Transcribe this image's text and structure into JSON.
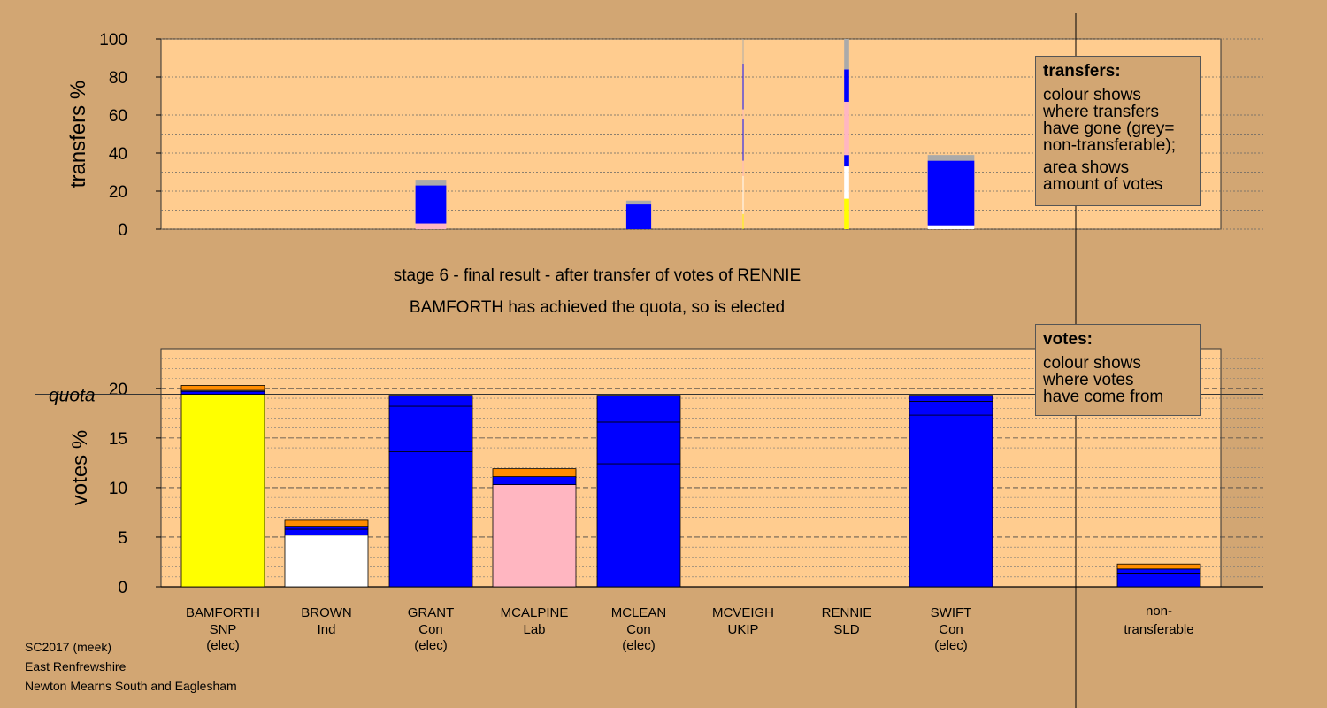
{
  "colors": {
    "background": "#d2a673",
    "plot_background": "#ffcc8f",
    "SNP": "#ffff00",
    "Ind": "#ffffff",
    "Con": "#0000ff",
    "Lab": "#ffb6c1",
    "UKIP": "#800080",
    "SLD": "#ff8c00",
    "non_transferable": "#aaaaaa"
  },
  "title": {
    "line1": "stage 6 - final result - after transfer of votes of RENNIE",
    "line2": "BAMFORTH has achieved the quota, so is elected"
  },
  "legend_transfers": {
    "title": "transfers:",
    "lines": [
      "colour shows",
      "where transfers",
      "have gone (grey=",
      "non-transferable);"
    ],
    "lines2": [
      "area shows",
      "amount of votes"
    ]
  },
  "legend_votes": {
    "title": "votes:",
    "lines": [
      "colour shows",
      "where votes",
      "have come from"
    ]
  },
  "footer": {
    "line1": "SC2017 (meek)",
    "line2": "East Renfrewshire",
    "line3": "Newton Mearns South and Eaglesham"
  },
  "chart_data": [
    {
      "type": "bar",
      "ylabel": "transfers %",
      "ylim": [
        0,
        100
      ],
      "yticks": [
        0,
        20,
        40,
        60,
        80,
        100
      ],
      "categories": [
        "BAMFORTH",
        "BROWN",
        "GRANT",
        "MCALPINE",
        "MCLEAN",
        "MCVEIGH",
        "RENNIE",
        "SWIFT"
      ],
      "stacks": [
        [],
        [],
        [
          {
            "party": "Lab",
            "value": 3
          },
          {
            "party": "Con",
            "value": 20
          },
          {
            "party": "non_transferable",
            "value": 3
          }
        ],
        [],
        [
          {
            "party": "Con",
            "value": 1
          },
          {
            "party": "Con",
            "value": 8
          },
          {
            "party": "Con",
            "value": 4
          },
          {
            "party": "non_transferable",
            "value": 2
          }
        ],
        [
          {
            "party": "SNP",
            "value": 8
          },
          {
            "party": "Ind",
            "value": 20
          },
          {
            "party": "Lab",
            "value": 8
          },
          {
            "party": "Con",
            "value": 22
          },
          {
            "party": "Lab",
            "value": 5
          },
          {
            "party": "Con",
            "value": 24
          },
          {
            "party": "non_transferable",
            "value": 13
          }
        ],
        [
          {
            "party": "SNP",
            "value": 16
          },
          {
            "party": "Ind",
            "value": 17
          },
          {
            "party": "Con",
            "value": 6
          },
          {
            "party": "Lab",
            "value": 28
          },
          {
            "party": "Con",
            "value": 17
          },
          {
            "party": "non_transferable",
            "value": 16
          }
        ],
        [
          {
            "party": "Ind",
            "value": 2
          },
          {
            "party": "Con",
            "value": 18
          },
          {
            "party": "Con",
            "value": 16
          },
          {
            "party": "non_transferable",
            "value": 3
          }
        ]
      ],
      "widths": [
        0,
        0,
        0.37,
        0,
        0.3,
        0.01,
        0.06,
        0.56
      ]
    },
    {
      "type": "bar",
      "ylabel": "votes %",
      "ylim": [
        0,
        24
      ],
      "yticks": [
        0,
        5,
        10,
        15,
        20
      ],
      "quota": 19.4,
      "quota_label": "quota",
      "categories": [
        {
          "name": "BAMFORTH",
          "party": "SNP",
          "status": "(elec)"
        },
        {
          "name": "BROWN",
          "party": "Ind",
          "status": ""
        },
        {
          "name": "GRANT",
          "party": "Con",
          "status": "(elec)"
        },
        {
          "name": "MCALPINE",
          "party": "Lab",
          "status": ""
        },
        {
          "name": "MCLEAN",
          "party": "Con",
          "status": "(elec)"
        },
        {
          "name": "MCVEIGH",
          "party": "UKIP",
          "status": ""
        },
        {
          "name": "RENNIE",
          "party": "SLD",
          "status": ""
        },
        {
          "name": "SWIFT",
          "party": "Con",
          "status": "(elec)"
        },
        {
          "name": "non-",
          "party": "transferable",
          "status": ""
        }
      ],
      "stacks": [
        [
          {
            "party": "SNP",
            "value": 19.4
          },
          {
            "party": "Con",
            "value": 0.3
          },
          {
            "party": "non_transferable",
            "value": 0.1
          },
          {
            "party": "SLD",
            "value": 0.5
          }
        ],
        [
          {
            "party": "Ind",
            "value": 5.2
          },
          {
            "party": "Con",
            "value": 0.6
          },
          {
            "party": "Con",
            "value": 0.3
          },
          {
            "party": "SLD",
            "value": 0.6
          }
        ],
        [
          {
            "party": "Con",
            "value": 13.6
          },
          {
            "party": "Con",
            "value": 4.6
          },
          {
            "party": "Con",
            "value": 1.1
          }
        ],
        [
          {
            "party": "Lab",
            "value": 10.3
          },
          {
            "party": "Con",
            "value": 0.8
          },
          {
            "party": "SLD",
            "value": 0.8
          }
        ],
        [
          {
            "party": "Con",
            "value": 12.4
          },
          {
            "party": "Con",
            "value": 4.2
          },
          {
            "party": "Con",
            "value": 2.7
          }
        ],
        [],
        [],
        [
          {
            "party": "Con",
            "value": 17.3
          },
          {
            "party": "Con",
            "value": 1.4
          },
          {
            "party": "Con",
            "value": 0.6
          }
        ],
        [
          {
            "party": "Con",
            "value": 1.3
          },
          {
            "party": "Con",
            "value": 0.5
          },
          {
            "party": "SLD",
            "value": 0.5
          }
        ]
      ]
    }
  ]
}
